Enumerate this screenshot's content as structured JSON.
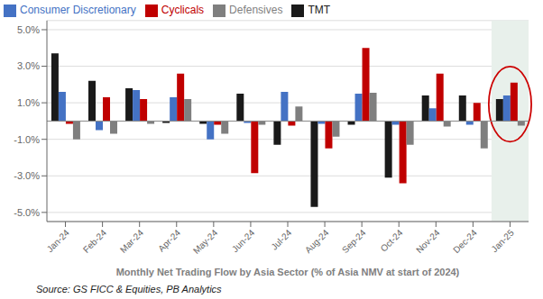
{
  "chart_data": {
    "type": "bar",
    "categories": [
      "Jan-24",
      "Feb-24",
      "Mar-24",
      "Apr-24",
      "May-24",
      "Jun-24",
      "Jul-24",
      "Aug-24",
      "Sep-24",
      "Oct-24",
      "Nov-24",
      "Dec-24",
      "Jan-25"
    ],
    "series": [
      {
        "name": "TMT",
        "color": "#1a1a1a",
        "values": [
          3.7,
          2.2,
          1.8,
          -0.1,
          -0.15,
          1.5,
          -1.3,
          -4.7,
          -0.2,
          -3.1,
          1.4,
          1.4,
          1.2
        ]
      },
      {
        "name": "Consumer Discretionary",
        "color": "#4472c4",
        "values": [
          1.6,
          -0.5,
          1.7,
          1.3,
          -1.0,
          -0.1,
          1.6,
          -0.15,
          1.5,
          -0.2,
          0.7,
          -0.2,
          1.4
        ]
      },
      {
        "name": "Cyclicals",
        "color": "#c00000",
        "values": [
          -0.15,
          1.3,
          1.2,
          2.6,
          -0.2,
          -2.85,
          -0.25,
          -1.5,
          4.0,
          -3.4,
          2.6,
          1.0,
          2.1
        ]
      },
      {
        "name": "Defensives",
        "color": "#7f7f7f",
        "values": [
          -1.0,
          -0.7,
          -0.15,
          1.2,
          -0.7,
          -0.2,
          0.8,
          -0.85,
          1.55,
          -1.3,
          -0.3,
          -1.5,
          -0.25
        ]
      }
    ],
    "xlabel": "Monthly Net Trading Flow by Asia Sector (% of Asia NMV at start of 2024)",
    "ylim": [
      -5.5,
      5.5
    ],
    "yticks": [
      {
        "value": -5.0,
        "label": "-5.0%"
      },
      {
        "value": -3.0,
        "label": "-3.0%"
      },
      {
        "value": -1.0,
        "label": "-1.0%"
      },
      {
        "value": 1.0,
        "label": "1.0%"
      },
      {
        "value": 3.0,
        "label": "3.0%"
      },
      {
        "value": 5.0,
        "label": "5.0%"
      }
    ],
    "grid": true,
    "legend": "top-left",
    "annotations": [
      "Source: GS FICC & Equities, PB Analytics"
    ]
  }
}
